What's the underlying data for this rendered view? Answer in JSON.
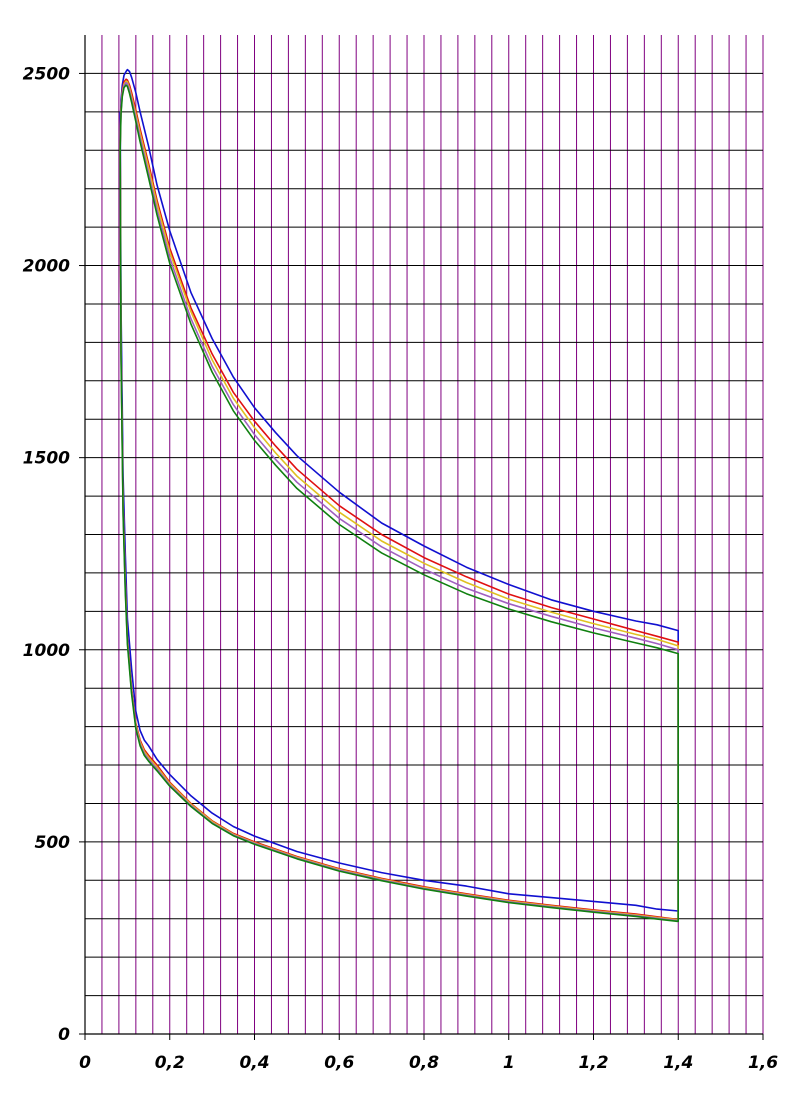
{
  "chart_data": {
    "type": "line",
    "title": "",
    "xlabel": "",
    "ylabel": "",
    "xlim": [
      0,
      1.6
    ],
    "ylim": [
      0,
      2600
    ],
    "x_ticks": [
      0,
      0.2,
      0.4,
      0.6,
      0.8,
      1,
      1.2,
      1.4,
      1.6
    ],
    "x_tick_labels": [
      "0",
      "0,2",
      "0,4",
      "0,6",
      "0,8",
      "1",
      "1,2",
      "1,4",
      "1,6"
    ],
    "y_ticks": [
      0,
      500,
      1000,
      1500,
      2000,
      2500
    ],
    "y_tick_labels": [
      "0",
      "500",
      "1000",
      "1500",
      "2000",
      "2500"
    ],
    "grid": true,
    "grid_x_step": 0.04,
    "grid_y_step": 100,
    "legend": "none",
    "colors": {
      "grid_vertical": "#800080",
      "grid_horizontal": "#000000",
      "axes": "#000000"
    },
    "series": [
      {
        "color": "#1010d0",
        "upper": {
          "x": [
            0.083,
            0.085,
            0.088,
            0.092,
            0.097,
            0.1,
            0.105,
            0.11,
            0.12,
            0.13,
            0.15,
            0.17,
            0.2,
            0.25,
            0.3,
            0.35,
            0.4,
            0.45,
            0.5,
            0.6,
            0.7,
            0.8,
            0.9,
            1.0,
            1.1,
            1.2,
            1.3,
            1.35,
            1.4
          ],
          "y": [
            2350,
            2430,
            2470,
            2495,
            2505,
            2510,
            2505,
            2490,
            2450,
            2400,
            2310,
            2210,
            2090,
            1930,
            1810,
            1710,
            1630,
            1565,
            1505,
            1410,
            1330,
            1270,
            1215,
            1170,
            1130,
            1100,
            1075,
            1065,
            1050
          ]
        },
        "lower": {
          "x": [
            0.083,
            0.085,
            0.09,
            0.095,
            0.1,
            0.11,
            0.12,
            0.13,
            0.14,
            0.15,
            0.17,
            0.2,
            0.25,
            0.3,
            0.35,
            0.4,
            0.5,
            0.6,
            0.7,
            0.8,
            0.9,
            1.0,
            1.1,
            1.2,
            1.3,
            1.35,
            1.4
          ],
          "y": [
            2400,
            1900,
            1450,
            1250,
            1080,
            950,
            840,
            790,
            765,
            750,
            715,
            675,
            620,
            575,
            540,
            515,
            475,
            445,
            420,
            400,
            385,
            365,
            355,
            345,
            335,
            325,
            320
          ]
        }
      },
      {
        "color": "#e01010",
        "upper": {
          "x": [
            0.083,
            0.085,
            0.088,
            0.092,
            0.097,
            0.1,
            0.105,
            0.11,
            0.12,
            0.13,
            0.15,
            0.17,
            0.2,
            0.25,
            0.3,
            0.35,
            0.4,
            0.45,
            0.5,
            0.6,
            0.7,
            0.8,
            0.9,
            1.0,
            1.1,
            1.2,
            1.3,
            1.35,
            1.4
          ],
          "y": [
            2320,
            2410,
            2455,
            2478,
            2485,
            2483,
            2470,
            2450,
            2405,
            2355,
            2265,
            2170,
            2045,
            1890,
            1770,
            1670,
            1595,
            1530,
            1470,
            1375,
            1300,
            1240,
            1190,
            1145,
            1110,
            1080,
            1050,
            1035,
            1020
          ]
        },
        "lower": {
          "x": [
            0.083,
            0.085,
            0.09,
            0.095,
            0.1,
            0.11,
            0.12,
            0.13,
            0.14,
            0.15,
            0.17,
            0.2,
            0.25,
            0.3,
            0.35,
            0.4,
            0.5,
            0.6,
            0.7,
            0.8,
            0.9,
            1.0,
            1.1,
            1.2,
            1.3,
            1.35,
            1.4
          ],
          "y": [
            2300,
            1800,
            1380,
            1180,
            1030,
            900,
            810,
            765,
            740,
            725,
            700,
            655,
            600,
            555,
            522,
            500,
            462,
            430,
            405,
            383,
            365,
            348,
            335,
            323,
            312,
            305,
            298
          ]
        }
      },
      {
        "color": "#e0c020",
        "upper": {
          "x": [
            0.083,
            0.085,
            0.088,
            0.092,
            0.097,
            0.1,
            0.105,
            0.11,
            0.12,
            0.13,
            0.15,
            0.17,
            0.2,
            0.25,
            0.3,
            0.35,
            0.4,
            0.45,
            0.5,
            0.6,
            0.7,
            0.8,
            0.9,
            1.0,
            1.1,
            1.2,
            1.3,
            1.35,
            1.4
          ],
          "y": [
            2315,
            2405,
            2450,
            2472,
            2480,
            2478,
            2462,
            2440,
            2395,
            2345,
            2255,
            2160,
            2035,
            1880,
            1755,
            1655,
            1578,
            1512,
            1452,
            1358,
            1283,
            1225,
            1175,
            1132,
            1098,
            1068,
            1040,
            1027,
            1010
          ]
        },
        "lower": {
          "x": [
            0.083,
            0.085,
            0.09,
            0.095,
            0.1,
            0.11,
            0.12,
            0.13,
            0.14,
            0.15,
            0.17,
            0.2,
            0.25,
            0.3,
            0.35,
            0.4,
            0.5,
            0.6,
            0.7,
            0.8,
            0.9,
            1.0,
            1.1,
            1.2,
            1.3,
            1.35,
            1.4
          ],
          "y": [
            2290,
            1790,
            1370,
            1170,
            1025,
            895,
            805,
            760,
            735,
            720,
            695,
            652,
            598,
            553,
            520,
            498,
            460,
            428,
            403,
            381,
            363,
            346,
            333,
            321,
            310,
            303,
            297
          ]
        }
      },
      {
        "color": "#a060c0",
        "upper": {
          "x": [
            0.083,
            0.085,
            0.088,
            0.092,
            0.097,
            0.1,
            0.105,
            0.11,
            0.12,
            0.13,
            0.15,
            0.17,
            0.2,
            0.25,
            0.3,
            0.35,
            0.4,
            0.45,
            0.5,
            0.6,
            0.7,
            0.8,
            0.9,
            1.0,
            1.1,
            1.2,
            1.3,
            1.35,
            1.4
          ],
          "y": [
            2310,
            2400,
            2445,
            2468,
            2476,
            2473,
            2456,
            2433,
            2385,
            2333,
            2240,
            2145,
            2020,
            1862,
            1738,
            1638,
            1560,
            1495,
            1436,
            1342,
            1268,
            1210,
            1160,
            1120,
            1087,
            1057,
            1030,
            1016,
            1000
          ]
        },
        "lower": {
          "x": [
            0.083,
            0.085,
            0.09,
            0.095,
            0.1,
            0.11,
            0.12,
            0.13,
            0.14,
            0.15,
            0.17,
            0.2,
            0.25,
            0.3,
            0.35,
            0.4,
            0.5,
            0.6,
            0.7,
            0.8,
            0.9,
            1.0,
            1.1,
            1.2,
            1.3,
            1.35,
            1.4
          ],
          "y": [
            2280,
            1780,
            1360,
            1160,
            1020,
            890,
            800,
            755,
            730,
            715,
            690,
            648,
            595,
            550,
            518,
            496,
            458,
            426,
            401,
            379,
            361,
            344,
            331,
            319,
            308,
            301,
            295
          ]
        }
      },
      {
        "color": "#108010",
        "upper": {
          "x": [
            0.083,
            0.085,
            0.088,
            0.092,
            0.097,
            0.1,
            0.105,
            0.11,
            0.12,
            0.13,
            0.15,
            0.17,
            0.2,
            0.25,
            0.3,
            0.35,
            0.4,
            0.45,
            0.5,
            0.6,
            0.7,
            0.8,
            0.9,
            1.0,
            1.1,
            1.2,
            1.3,
            1.35,
            1.4
          ],
          "y": [
            2305,
            2395,
            2440,
            2463,
            2470,
            2466,
            2448,
            2425,
            2375,
            2322,
            2228,
            2132,
            2005,
            1848,
            1723,
            1622,
            1545,
            1480,
            1420,
            1326,
            1252,
            1195,
            1146,
            1106,
            1073,
            1044,
            1018,
            1005,
            990
          ]
        },
        "lower": {
          "x": [
            0.083,
            0.085,
            0.09,
            0.095,
            0.1,
            0.11,
            0.12,
            0.13,
            0.14,
            0.15,
            0.17,
            0.2,
            0.25,
            0.3,
            0.35,
            0.4,
            0.5,
            0.6,
            0.7,
            0.8,
            0.9,
            1.0,
            1.1,
            1.2,
            1.3,
            1.35,
            1.4
          ],
          "y": [
            2270,
            1770,
            1350,
            1150,
            1015,
            885,
            795,
            750,
            725,
            710,
            685,
            645,
            592,
            548,
            516,
            494,
            456,
            424,
            399,
            377,
            359,
            342,
            329,
            317,
            306,
            299,
            293
          ]
        }
      }
    ]
  }
}
